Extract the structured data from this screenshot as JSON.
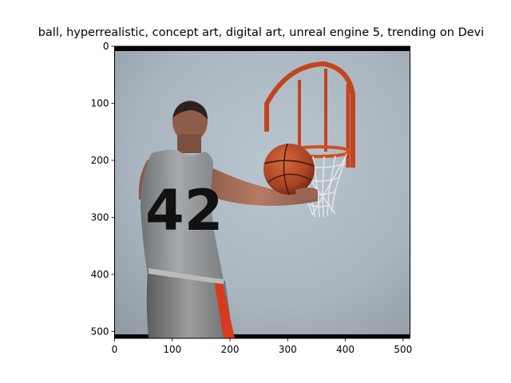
{
  "chart_data": {
    "type": "image",
    "title": "ball,  hyperrealistic, concept art, digital art, unreal engine 5, trending on Devi",
    "image_description": "A basketball player wearing a grey jersey with the number 42, seen from behind, holding a basketball next to an orange hoop with a white net against a light blue-grey background.",
    "jersey_number": "42",
    "xlim": [
      0,
      512
    ],
    "ylim": [
      512,
      0
    ],
    "x_ticks": [
      0,
      100,
      200,
      300,
      400,
      500
    ],
    "y_ticks": [
      0,
      100,
      200,
      300,
      400,
      500
    ],
    "grid": false
  }
}
